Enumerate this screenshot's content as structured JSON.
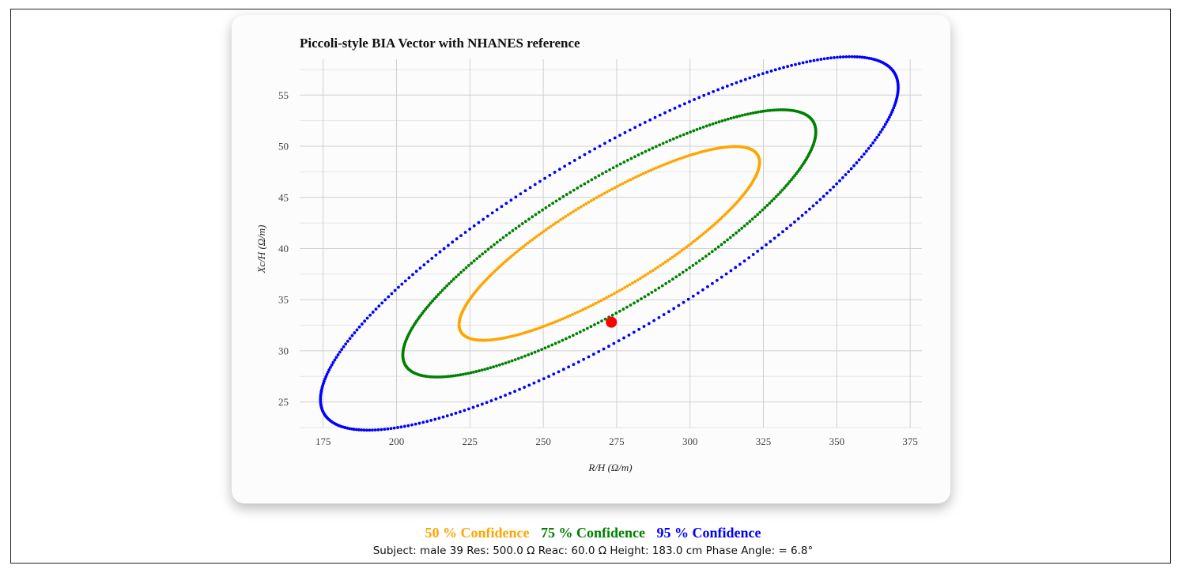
{
  "chart_data": {
    "type": "scatter",
    "title": "Piccoli-style BIA Vector with NHANES reference",
    "xlabel": "R/H (Ω/m)",
    "ylabel": "Xc/H (Ω/m)",
    "xlim": [
      167,
      379
    ],
    "ylim": [
      22.5,
      58.5
    ],
    "xticks": [
      175,
      200,
      225,
      250,
      275,
      300,
      325,
      350,
      375
    ],
    "yticks": [
      25,
      30,
      35,
      40,
      45,
      50,
      55
    ],
    "grid": true,
    "ellipses": [
      {
        "name": "50 % Confidence",
        "color": "#ffa500",
        "center": [
          272.5,
          40.5
        ],
        "a": 51.8,
        "b": 5.1,
        "angle_deg": 8.9,
        "point_count": 360
      },
      {
        "name": "75 % Confidence",
        "color": "#008000",
        "center": [
          272.5,
          40.5
        ],
        "a": 71.2,
        "b": 7.1,
        "angle_deg": 8.9,
        "point_count": 360
      },
      {
        "name": "95 % Confidence",
        "color": "#0000ff",
        "center": [
          272.5,
          40.5
        ],
        "a": 99.6,
        "b": 9.9,
        "angle_deg": 8.9,
        "point_count": 360
      }
    ],
    "subject_point": {
      "x": 273.2,
      "y": 32.8,
      "color": "#ff0000"
    }
  },
  "legend": {
    "items": [
      {
        "label": "50 % Confidence",
        "color": "#ffa500"
      },
      {
        "label": "75 % Confidence",
        "color": "#008000"
      },
      {
        "label": "95 % Confidence",
        "color": "#0000ff"
      }
    ]
  },
  "subject_info": "Subject: male 39 Res: 500.0 Ω Reac: 60.0 Ω Height: 183.0 cm Phase Angle: = 6.8°"
}
